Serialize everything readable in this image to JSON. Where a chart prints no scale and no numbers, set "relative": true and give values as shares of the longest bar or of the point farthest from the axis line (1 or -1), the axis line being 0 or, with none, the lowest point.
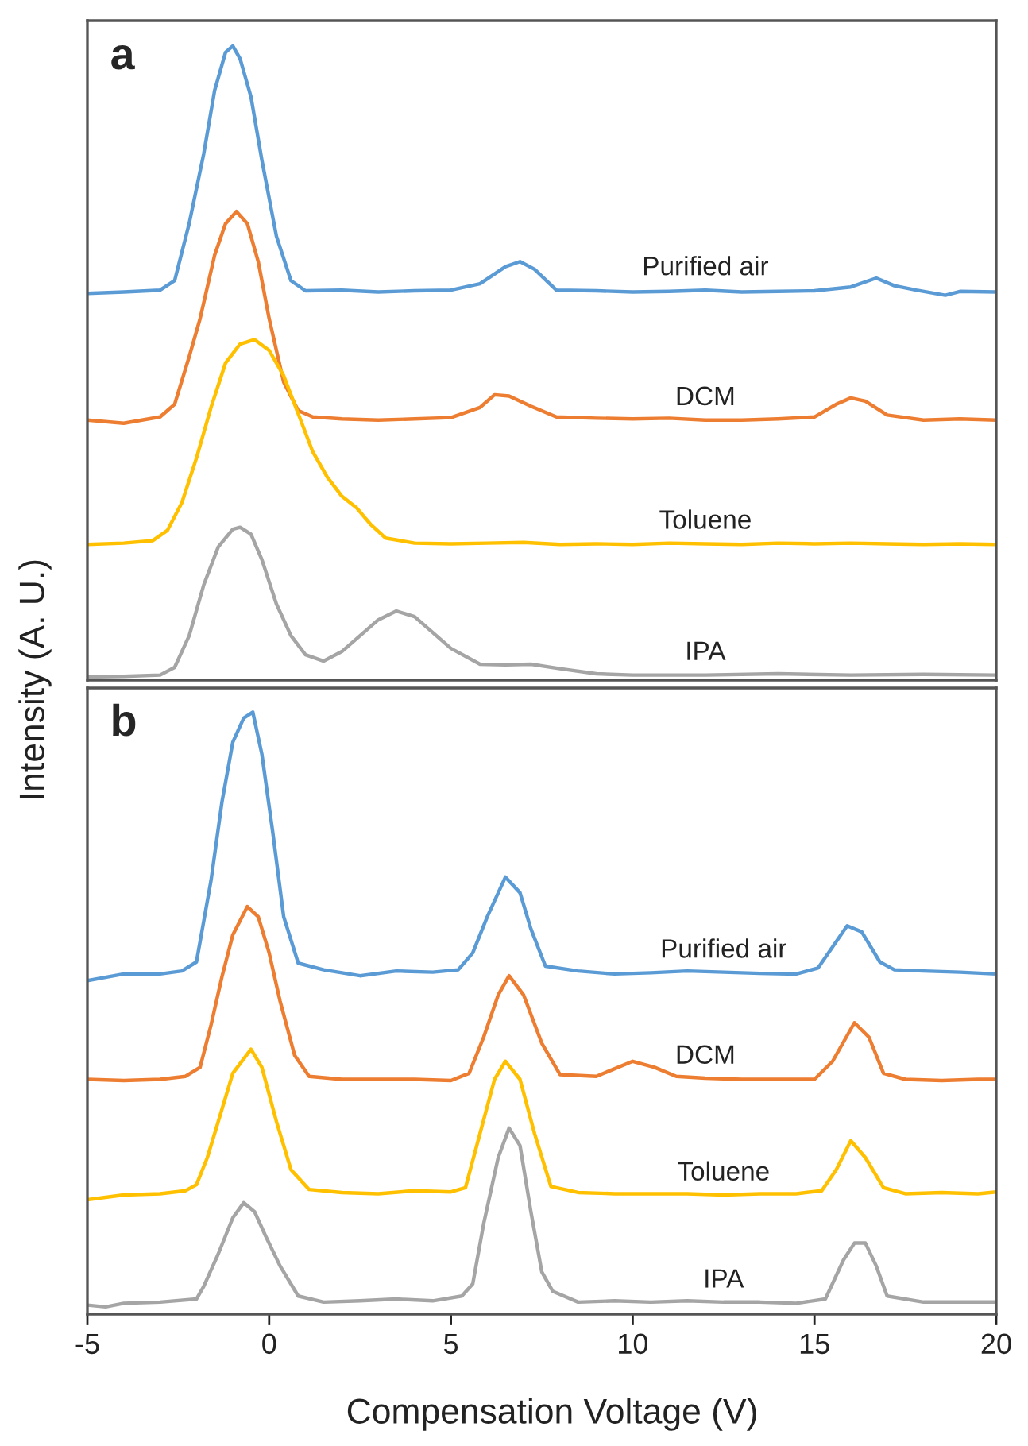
{
  "chart_data": [
    {
      "type": "line",
      "title": "a",
      "ylabel": "Intensity (A. U.)",
      "relative": true,
      "xlim": [
        -5,
        20
      ],
      "tick_labels": false,
      "legend": false,
      "series": [
        {
          "name": "Purified air",
          "color": "#5b9bd5",
          "x": [
            -5,
            -4,
            -3,
            -2.6,
            -2.2,
            -1.8,
            -1.5,
            -1.2,
            -1.0,
            -0.8,
            -0.5,
            -0.2,
            0.2,
            0.6,
            1.0,
            2,
            3,
            4,
            5,
            5.8,
            6.5,
            6.9,
            7.3,
            7.9,
            9,
            10,
            11,
            12,
            13,
            14,
            15,
            16,
            16.7,
            17.2,
            17.8,
            18.6,
            19,
            20
          ],
          "values": [
            0.61,
            0.612,
            0.615,
            0.63,
            0.72,
            0.83,
            0.93,
            0.99,
            1.0,
            0.98,
            0.92,
            0.82,
            0.7,
            0.63,
            0.614,
            0.615,
            0.612,
            0.614,
            0.615,
            0.625,
            0.652,
            0.66,
            0.648,
            0.615,
            0.614,
            0.612,
            0.613,
            0.615,
            0.612,
            0.613,
            0.614,
            0.62,
            0.634,
            0.622,
            0.615,
            0.607,
            0.613,
            0.612
          ]
        },
        {
          "name": "DCM",
          "color": "#ed7d31",
          "x": [
            -5,
            -4,
            -3.5,
            -3,
            -2.6,
            -2.2,
            -1.9,
            -1.5,
            -1.2,
            -0.9,
            -0.6,
            -0.3,
            0,
            0.4,
            0.8,
            1.2,
            2,
            3,
            4,
            5,
            5.8,
            6.2,
            6.6,
            7.2,
            7.9,
            9,
            10,
            11,
            12,
            13,
            14,
            15,
            15.6,
            16,
            16.4,
            17,
            18,
            19,
            20
          ],
          "values": [
            0.41,
            0.405,
            0.41,
            0.415,
            0.435,
            0.51,
            0.57,
            0.67,
            0.72,
            0.739,
            0.72,
            0.66,
            0.57,
            0.47,
            0.425,
            0.415,
            0.412,
            0.41,
            0.412,
            0.414,
            0.43,
            0.45,
            0.448,
            0.432,
            0.415,
            0.413,
            0.412,
            0.413,
            0.41,
            0.41,
            0.412,
            0.415,
            0.435,
            0.445,
            0.44,
            0.418,
            0.41,
            0.412,
            0.41
          ]
        },
        {
          "name": "Toluene",
          "color": "#ffc000",
          "x": [
            -5,
            -4,
            -3.2,
            -2.8,
            -2.4,
            -2,
            -1.6,
            -1.2,
            -0.8,
            -0.4,
            0,
            0.4,
            0.8,
            1.2,
            1.6,
            2.0,
            2.4,
            2.8,
            3.2,
            4,
            5,
            6,
            7,
            8,
            9,
            10,
            11,
            12,
            13,
            14,
            15,
            16,
            17,
            18,
            19,
            20
          ],
          "values": [
            0.214,
            0.216,
            0.22,
            0.236,
            0.28,
            0.35,
            0.43,
            0.5,
            0.53,
            0.537,
            0.52,
            0.48,
            0.42,
            0.36,
            0.32,
            0.29,
            0.272,
            0.245,
            0.224,
            0.216,
            0.215,
            0.216,
            0.217,
            0.214,
            0.215,
            0.214,
            0.216,
            0.215,
            0.214,
            0.216,
            0.215,
            0.216,
            0.215,
            0.214,
            0.215,
            0.214
          ]
        },
        {
          "name": "IPA",
          "color": "#a5a5a5",
          "x": [
            -5,
            -4,
            -3,
            -2.6,
            -2.2,
            -1.8,
            -1.4,
            -1.0,
            -0.8,
            -0.5,
            -0.2,
            0.2,
            0.6,
            1.0,
            1.5,
            2,
            2.5,
            3,
            3.5,
            4,
            4.5,
            5,
            5.8,
            6.5,
            7.2,
            8,
            9,
            10,
            12,
            14,
            16,
            18,
            20
          ],
          "values": [
            0.005,
            0.006,
            0.008,
            0.02,
            0.07,
            0.15,
            0.21,
            0.238,
            0.241,
            0.23,
            0.19,
            0.12,
            0.07,
            0.04,
            0.03,
            0.045,
            0.07,
            0.095,
            0.109,
            0.1,
            0.075,
            0.05,
            0.025,
            0.024,
            0.025,
            0.018,
            0.01,
            0.008,
            0.008,
            0.01,
            0.008,
            0.009,
            0.008
          ]
        }
      ]
    },
    {
      "type": "line",
      "title": "b",
      "xlabel": "Compensation Voltage (V)",
      "relative": true,
      "xlim": [
        -5,
        20
      ],
      "xticks": [
        -5,
        0,
        5,
        10,
        15,
        20
      ],
      "tick_labels": "x",
      "legend": false,
      "series": [
        {
          "name": "Purified air",
          "color": "#5b9bd5",
          "x": [
            -5,
            -4,
            -3,
            -2.4,
            -2.0,
            -1.6,
            -1.3,
            -1.0,
            -0.7,
            -0.45,
            -0.2,
            0.1,
            0.4,
            0.8,
            1.5,
            2.5,
            3.5,
            4.5,
            5.2,
            5.6,
            6.0,
            6.5,
            6.9,
            7.2,
            7.6,
            8.5,
            9.5,
            10.5,
            11.5,
            12.5,
            13.5,
            14.5,
            15.1,
            15.5,
            15.9,
            16.3,
            16.8,
            17.2,
            18,
            19,
            20
          ],
          "values": [
            0.554,
            0.565,
            0.565,
            0.57,
            0.585,
            0.72,
            0.85,
            0.95,
            0.99,
            1.0,
            0.93,
            0.8,
            0.66,
            0.583,
            0.572,
            0.562,
            0.57,
            0.568,
            0.572,
            0.6,
            0.66,
            0.726,
            0.7,
            0.64,
            0.578,
            0.57,
            0.565,
            0.567,
            0.57,
            0.568,
            0.566,
            0.565,
            0.575,
            0.61,
            0.645,
            0.635,
            0.585,
            0.572,
            0.57,
            0.568,
            0.565
          ]
        },
        {
          "name": "DCM",
          "color": "#ed7d31",
          "x": [
            -5,
            -4,
            -3,
            -2.3,
            -1.9,
            -1.6,
            -1.3,
            -1.0,
            -0.6,
            -0.3,
            0,
            0.3,
            0.7,
            1.1,
            2,
            3,
            4,
            5,
            5.5,
            5.9,
            6.3,
            6.6,
            7.0,
            7.5,
            8.0,
            9,
            10,
            10.6,
            11.2,
            12,
            13,
            14,
            15,
            15.5,
            16.1,
            16.5,
            16.9,
            17.5,
            18.5,
            19.5,
            20
          ],
          "values": [
            0.39,
            0.388,
            0.39,
            0.395,
            0.41,
            0.48,
            0.56,
            0.63,
            0.677,
            0.66,
            0.6,
            0.52,
            0.43,
            0.395,
            0.39,
            0.39,
            0.39,
            0.388,
            0.4,
            0.46,
            0.53,
            0.562,
            0.53,
            0.45,
            0.398,
            0.395,
            0.42,
            0.41,
            0.395,
            0.392,
            0.39,
            0.39,
            0.39,
            0.42,
            0.484,
            0.46,
            0.4,
            0.39,
            0.388,
            0.39,
            0.39
          ]
        },
        {
          "name": "Toluene",
          "color": "#ffc000",
          "x": [
            -5,
            -4,
            -3,
            -2.3,
            -2.0,
            -1.7,
            -1.4,
            -1.0,
            -0.5,
            -0.2,
            0.2,
            0.6,
            1.1,
            2,
            3,
            4,
            5,
            5.4,
            5.8,
            6.2,
            6.5,
            6.9,
            7.3,
            7.75,
            8.5,
            9.5,
            10.5,
            11.5,
            12.5,
            13.5,
            14.5,
            15.2,
            15.6,
            16.0,
            16.4,
            16.9,
            17.5,
            18.5,
            19.5,
            20
          ],
          "values": [
            0.19,
            0.198,
            0.2,
            0.205,
            0.215,
            0.26,
            0.32,
            0.4,
            0.44,
            0.41,
            0.32,
            0.24,
            0.207,
            0.202,
            0.2,
            0.205,
            0.203,
            0.21,
            0.3,
            0.39,
            0.42,
            0.39,
            0.3,
            0.212,
            0.202,
            0.2,
            0.2,
            0.2,
            0.198,
            0.2,
            0.2,
            0.205,
            0.24,
            0.288,
            0.26,
            0.21,
            0.2,
            0.202,
            0.2,
            0.203
          ]
        },
        {
          "name": "IPA",
          "color": "#a5a5a5",
          "x": [
            -5,
            -4.5,
            -4,
            -3,
            -2,
            -1.8,
            -1.4,
            -1.0,
            -0.7,
            -0.4,
            -0.1,
            0.3,
            0.8,
            1.5,
            2.5,
            3.5,
            4.5,
            5.3,
            5.6,
            5.9,
            6.3,
            6.6,
            6.9,
            7.2,
            7.5,
            7.8,
            8.5,
            9.5,
            10.5,
            11.5,
            12.5,
            13.5,
            14.5,
            15.3,
            15.8,
            16.1,
            16.4,
            16.7,
            17.0,
            18,
            19,
            20
          ],
          "values": [
            0.015,
            0.012,
            0.018,
            0.02,
            0.025,
            0.046,
            0.1,
            0.16,
            0.185,
            0.17,
            0.13,
            0.08,
            0.03,
            0.02,
            0.022,
            0.025,
            0.022,
            0.03,
            0.05,
            0.15,
            0.26,
            0.309,
            0.28,
            0.17,
            0.07,
            0.038,
            0.02,
            0.022,
            0.02,
            0.022,
            0.02,
            0.02,
            0.018,
            0.025,
            0.09,
            0.118,
            0.118,
            0.08,
            0.03,
            0.02,
            0.02,
            0.02
          ]
        }
      ]
    }
  ]
}
